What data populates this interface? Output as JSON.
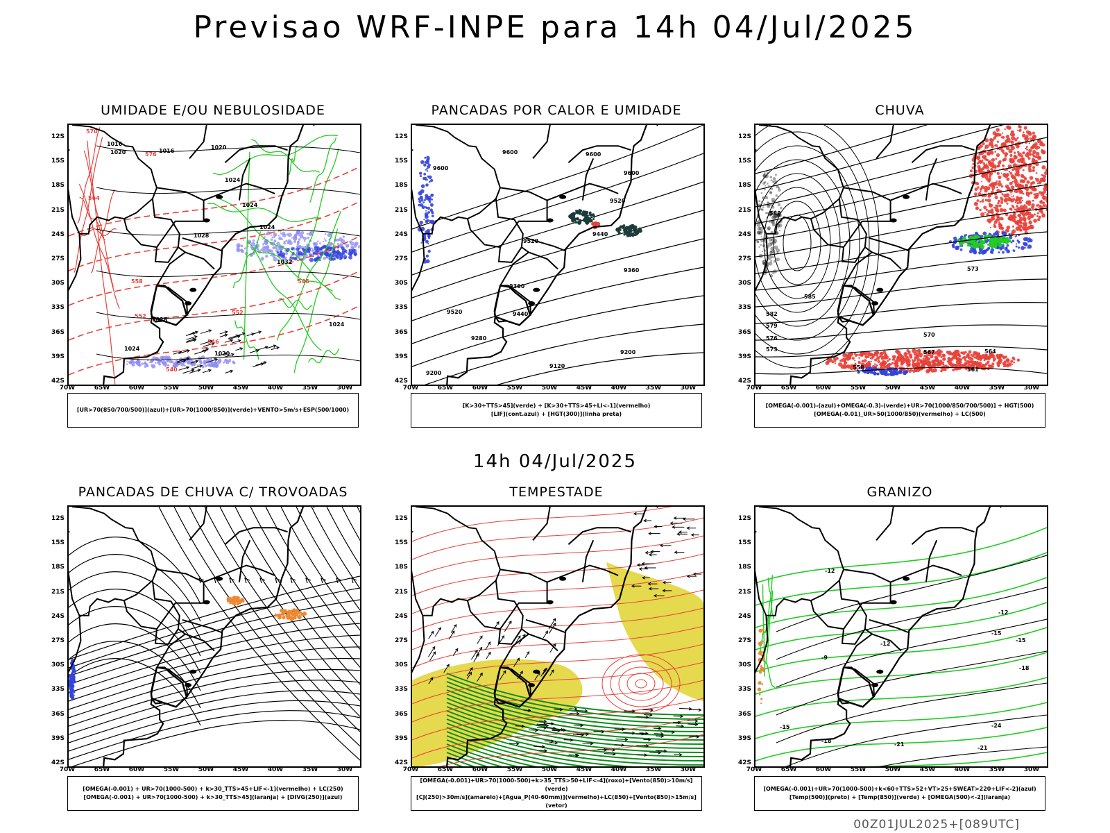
{
  "page": {
    "title": "Previsao WRF-INPE  para 14h 04/Jul/2025",
    "mid_title": "14h 04/Jul/2025",
    "footer": "00Z01JUL2025+[089UTC]"
  },
  "axes": {
    "lat_ticks": [
      "12S",
      "15S",
      "18S",
      "21S",
      "24S",
      "27S",
      "30S",
      "33S",
      "36S",
      "39S",
      "42S"
    ],
    "lon_ticks": [
      "70W",
      "65W",
      "60W",
      "55W",
      "50W",
      "45W",
      "40W",
      "35W",
      "30W"
    ]
  },
  "panels": [
    {
      "id": "umidade",
      "title": "UMIDADE E/OU NEBULOSIDADE",
      "legend": [
        "[UR>70(850/700/500)](azul)+[UR>70(1000/850)](verde)+VENTO>5m/s+ESP(500/1000)"
      ],
      "contour_labels": [
        "1020",
        "1016",
        "1016",
        "1020",
        "1024",
        "1024",
        "1028",
        "1024",
        "1032",
        "1028",
        "1024",
        "1020",
        "1024"
      ],
      "red_labels": [
        "570",
        "576",
        "564",
        "558",
        "552",
        "546",
        "540",
        "546",
        "552"
      ]
    },
    {
      "id": "pancadas-calor",
      "title": "PANCADAS POR CALOR E UMIDADE",
      "legend": [
        "[K>30+TTS>45](verde) + [K>30+TTS>45+LI<-1](vermelho)",
        "[LIF](cont.azul) + [HGT(300)](linha preta)"
      ],
      "contour_labels": [
        "9600",
        "9600",
        "9600",
        "9600",
        "9520",
        "9520",
        "9440",
        "9440",
        "9360",
        "9520",
        "9360",
        "9280",
        "9200",
        "9200",
        "9120"
      ]
    },
    {
      "id": "chuva",
      "title": "CHUVA",
      "legend": [
        "[OMEGA(-0.001)-(azul)+OMEGA(-0.3)-(verde)+UR>70(1000/850/700/500)] + HGT(500)",
        "[OMEGA(-0.01)_UR>50(1000/850)(vermelho) + LC(500)"
      ],
      "contour_labels": [
        "588",
        "585",
        "582",
        "579",
        "576",
        "573",
        "570",
        "567",
        "564",
        "561",
        "558",
        "573"
      ]
    },
    {
      "id": "pancadas-trovoadas",
      "title": "PANCADAS DE CHUVA C/ TROVOADAS",
      "legend": [
        "[OMEGA(-0.001) + UR>70(1000-500) + k>30_TTS>45+LIF<-1](vermelho) + LC(250)",
        "[OMEGA(-0.001) + UR>70(1000-500) + k>30_TTS>45](laranja) + [DIVG(250)](azul)"
      ]
    },
    {
      "id": "tempestade",
      "title": "TEMPESTADE",
      "legend": [
        "[OMEGA(-0.001)+UR>70(1000-500)+k>35_TTS>50+LIF<-4](roxo)+[Vento(850)>10m/s](verde)",
        "[CJ(250)>30m/s](amarelo)+[Agua_P(40-60mm)](vermelho)+LC(850)+[Vento(850)>15m/s](vetor)"
      ]
    },
    {
      "id": "granizo",
      "title": "GRANIZO",
      "legend": [
        "[OMEGA(-0.001)+UR>70(1000-500)+k<60+TTS>52+VT>25+SWEAT>220+LIF<-2](azul)",
        "[Temp(500)](preto) + [Temp(850)](verde) + [OMEGA(500)<-2](laranja)"
      ],
      "contour_labels": [
        "-12",
        "-12",
        "-15",
        "-12",
        "-18",
        "-15",
        "-9",
        "-18",
        "-21",
        "-21",
        "-24",
        "-15"
      ]
    }
  ],
  "colors": {
    "red": "#e8413a",
    "green": "#22cc22",
    "blue": "#3344dd",
    "lavender": "#8f8cf0",
    "yellow": "#e2d53a",
    "orange": "#ee8833",
    "darkteal": "#1c3c3c",
    "darkgreen": "#0e8c1a"
  }
}
